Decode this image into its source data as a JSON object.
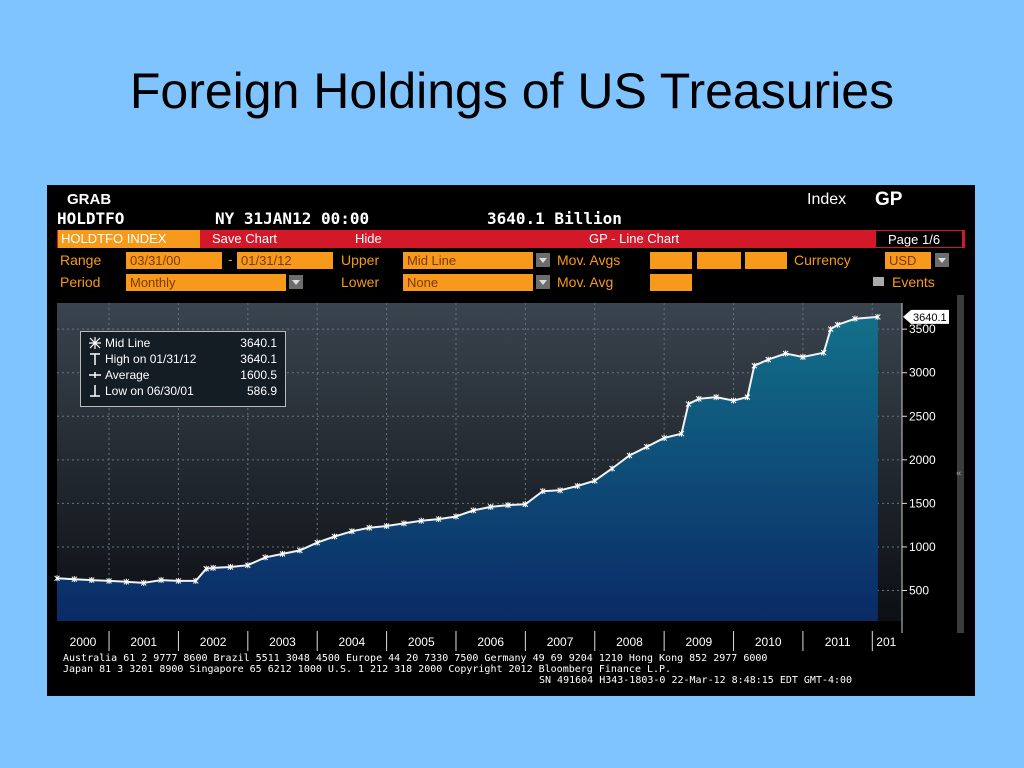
{
  "slide_title": "Foreign Holdings of US Treasuries",
  "terminal": {
    "grab": "GRAB",
    "ticker": "HOLDTFO",
    "timestamp": "NY 31JAN12 00:00",
    "last_value": "3640.1 Billion",
    "index_label": "Index",
    "function_code": "GP",
    "security": "HOLDTFO INDEX",
    "save_chart": "Save Chart",
    "hide": "Hide",
    "chart_title": "GP - Line Chart",
    "page": "Page 1/6",
    "range_label": "Range",
    "range_start": "03/31/00",
    "range_sep": "-",
    "range_end": "01/31/12",
    "upper_label": "Upper",
    "upper_value": "Mid Line",
    "mov_avgs_label": "Mov. Avgs",
    "currency_label": "Currency",
    "currency_value": "USD",
    "period_label": "Period",
    "period_value": "Monthly",
    "lower_label": "Lower",
    "lower_value": "None",
    "mov_avg_label": "Mov. Avg",
    "events_label": "Events"
  },
  "legend": {
    "mid_line": "Mid Line",
    "mid_line_val": "3640.1",
    "high": "High on 01/31/12",
    "high_val": "3640.1",
    "average": "Average",
    "average_val": "1600.5",
    "low": "Low on 06/30/01",
    "low_val": "586.9"
  },
  "last_label": "3640.1",
  "footer": {
    "line1": "Australia 61 2 9777 8600 Brazil 5511 3048 4500 Europe 44 20 7330 7500 Germany 49 69 9204 1210 Hong Kong 852 2977 6000",
    "line2": "Japan 81 3 3201 8900        Singapore 65 6212 1000        U.S. 1 212 318 2000          Copyright 2012 Bloomberg Finance L.P.",
    "line3": "SN 491604 H343-1803-0 22-Mar-12  8:48:15 EDT  GMT-4:00"
  },
  "colors": {
    "orange": "#f79a1c",
    "red": "#d3182a",
    "fill_top": "#12708a",
    "fill_bottom": "#0a2a66"
  },
  "chart_data": {
    "type": "area",
    "title": "GP - Line Chart",
    "series": [
      {
        "name": "Mid Line",
        "x": [
          2000.25,
          2000.5,
          2000.75,
          2001.0,
          2001.25,
          2001.5,
          2001.75,
          2002.0,
          2002.25,
          2002.4,
          2002.5,
          2002.75,
          2003.0,
          2003.25,
          2003.5,
          2003.75,
          2004.0,
          2004.25,
          2004.5,
          2004.75,
          2005.0,
          2005.25,
          2005.5,
          2005.75,
          2006.0,
          2006.25,
          2006.5,
          2006.75,
          2007.0,
          2007.25,
          2007.5,
          2007.75,
          2008.0,
          2008.25,
          2008.5,
          2008.75,
          2009.0,
          2009.25,
          2009.35,
          2009.5,
          2009.75,
          2010.0,
          2010.2,
          2010.3,
          2010.5,
          2010.75,
          2011.0,
          2011.3,
          2011.4,
          2011.5,
          2011.75,
          2012.08
        ],
        "values": [
          640,
          630,
          620,
          610,
          600,
          586.9,
          620,
          610,
          610,
          750,
          760,
          770,
          790,
          880,
          920,
          960,
          1050,
          1120,
          1180,
          1220,
          1240,
          1270,
          1300,
          1320,
          1350,
          1420,
          1460,
          1480,
          1490,
          1640,
          1650,
          1700,
          1760,
          1900,
          2050,
          2150,
          2250,
          2300,
          2640,
          2700,
          2720,
          2680,
          2720,
          3080,
          3150,
          3220,
          3180,
          3230,
          3500,
          3550,
          3620,
          3640.1
        ]
      }
    ],
    "x_tick_labels": [
      "2000",
      "2001",
      "2002",
      "2003",
      "2004",
      "2005",
      "2006",
      "2007",
      "2008",
      "2009",
      "2010",
      "2011",
      "201"
    ],
    "y_ticks": [
      500,
      1000,
      1500,
      2000,
      2500,
      3000,
      3500
    ],
    "xlim": [
      2000.25,
      2012.5
    ],
    "ylim": [
      150,
      3800
    ],
    "legend": "top-left",
    "grid": true
  }
}
